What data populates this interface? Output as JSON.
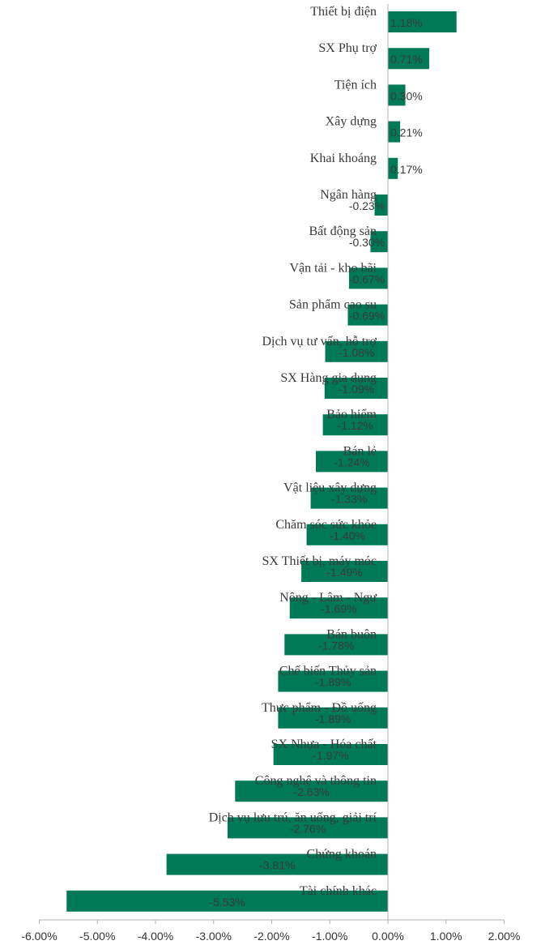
{
  "chart_data": {
    "type": "bar",
    "orientation": "horizontal",
    "title": "",
    "xlabel": "",
    "ylabel": "",
    "xlim": [
      -6,
      2
    ],
    "grid": false,
    "legend": "none",
    "colors": {
      "bar": "#007a56",
      "axis": "#b0b0b0"
    },
    "ticks": [
      "-6.00%",
      "-5.00%",
      "-4.00%",
      "-3.00%",
      "-2.00%",
      "-1.00%",
      "0.00%",
      "1.00%",
      "2.00%"
    ],
    "tick_values": [
      -6,
      -5,
      -4,
      -3,
      -2,
      -1,
      0,
      1,
      2
    ],
    "categories": [
      "Thiết bị điện",
      "SX Phụ trợ",
      "Tiện ích",
      "Xây dựng",
      "Khai khoáng",
      "Ngân hàng",
      "Bất động sản",
      "Vận tải - kho bãi",
      "Sản phẩm cao su",
      "Dịch vụ tư vấn, hỗ trợ",
      "SX Hàng gia dụng",
      "Bảo hiểm",
      "Bán lẻ",
      "Vật liệu xây dựng",
      "Chăm sóc sức khỏe",
      "SX Thiết bị, máy móc",
      "Nông - Lâm - Ngư",
      "Bán buôn",
      "Chế biến Thủy sản",
      "Thực phẩm - Đồ uống",
      "SX Nhựa - Hóa chất",
      "Công nghệ và thông tin",
      "Dịch vụ lưu trú, ăn uống, giải trí",
      "Chứng khoán",
      "Tài chính khác"
    ],
    "values": [
      1.18,
      0.71,
      0.3,
      0.21,
      0.17,
      -0.23,
      -0.3,
      -0.67,
      -0.69,
      -1.08,
      -1.09,
      -1.12,
      -1.24,
      -1.33,
      -1.4,
      -1.49,
      -1.69,
      -1.78,
      -1.89,
      -1.89,
      -1.97,
      -2.63,
      -2.76,
      -3.81,
      -5.53
    ],
    "value_labels": [
      "1.18%",
      "0.71%",
      "0.30%",
      "0.21%",
      "0.17%",
      "-0.23%",
      "-0.30%",
      "-0.67%",
      "-0.69%",
      "-1.08%",
      "-1.09%",
      "-1.12%",
      "-1.24%",
      "-1.33%",
      "-1.40%",
      "-1.49%",
      "-1.69%",
      "-1.78%",
      "-1.89%",
      "-1.89%",
      "-1.97%",
      "-2.63%",
      "-2.76%",
      "-3.81%",
      "-5.53%"
    ]
  }
}
